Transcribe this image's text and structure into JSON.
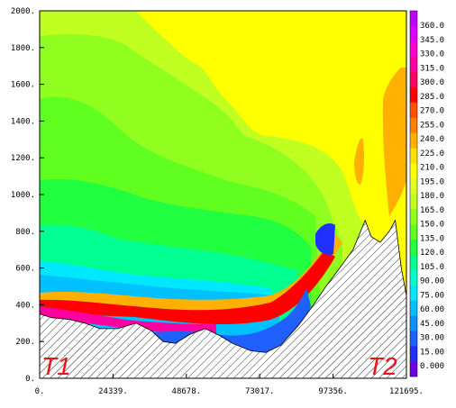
{
  "chart_data": {
    "type": "heatmap",
    "title": "",
    "xlabel": "",
    "ylabel": "",
    "xlim": [
      0,
      121695
    ],
    "ylim": [
      0,
      2000
    ],
    "x_ticks": [
      "0.",
      "24339.",
      "48678.",
      "73017.",
      "97356.",
      "121695."
    ],
    "y_ticks": [
      "0.",
      "200.",
      "400.",
      "600.",
      "800.",
      "1000.",
      "1200.",
      "1400.",
      "1600.",
      "1800.",
      "2000."
    ],
    "colorbar": {
      "range": [
        0,
        360
      ],
      "step": 15,
      "labels": [
        "0.000",
        "15.00",
        "30.00",
        "45.00",
        "60.00",
        "75.00",
        "90.00",
        "105.0",
        "120.0",
        "135.0",
        "150.0",
        "165.0",
        "180.0",
        "195.0",
        "210.0",
        "225.0",
        "240.0",
        "255.0",
        "270.0",
        "285.0",
        "300.0",
        "315.0",
        "330.0",
        "345.0",
        "360.0"
      ],
      "colors": [
        "#7000e0",
        "#2030ff",
        "#2060ff",
        "#1090ff",
        "#00c0ff",
        "#00e8ff",
        "#00ffd0",
        "#00ff90",
        "#20ff40",
        "#60ff20",
        "#90ff20",
        "#c0ff20",
        "#e0ff20",
        "#ffff00",
        "#ffe000",
        "#ffb000",
        "#ff8000",
        "#ff5000",
        "#ff0000",
        "#ff0060",
        "#ff00a0",
        "#ff00d0",
        "#e000ff",
        "#c000ff"
      ]
    },
    "terrain_profile": [
      [
        0,
        350
      ],
      [
        4000,
        330
      ],
      [
        10000,
        320
      ],
      [
        15000,
        300
      ],
      [
        20000,
        270
      ],
      [
        26000,
        270
      ],
      [
        32000,
        300
      ],
      [
        37000,
        260
      ],
      [
        41000,
        200
      ],
      [
        45000,
        190
      ],
      [
        50000,
        240
      ],
      [
        55000,
        270
      ],
      [
        60000,
        230
      ],
      [
        64000,
        190
      ],
      [
        70000,
        150
      ],
      [
        75000,
        140
      ],
      [
        80000,
        180
      ],
      [
        86000,
        290
      ],
      [
        90000,
        380
      ],
      [
        95000,
        500
      ],
      [
        100000,
        610
      ],
      [
        104000,
        700
      ],
      [
        108000,
        860
      ],
      [
        110000,
        770
      ],
      [
        113000,
        740
      ],
      [
        116000,
        800
      ],
      [
        118000,
        860
      ],
      [
        120000,
        600
      ],
      [
        121695,
        450
      ]
    ],
    "annotations": [
      "T1",
      "T2"
    ]
  }
}
